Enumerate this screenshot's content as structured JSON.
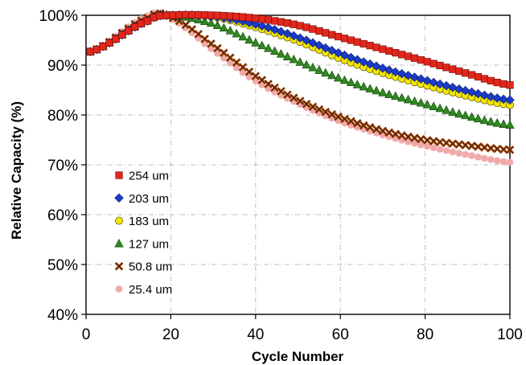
{
  "chart_data": {
    "type": "scatter",
    "title": "",
    "xlabel": "Cycle Number",
    "ylabel": "Relative Capacity (%)",
    "xlim": [
      0,
      100
    ],
    "ylim": [
      40,
      100
    ],
    "x_ticks": [
      0,
      20,
      40,
      60,
      80,
      100
    ],
    "y_ticks": [
      40,
      50,
      60,
      70,
      80,
      90,
      100
    ],
    "y_tick_format": "percent",
    "grid": "dashed",
    "legend_position": "left-lower",
    "x": [
      1,
      15,
      20,
      30,
      40,
      50,
      60,
      70,
      80,
      90,
      100
    ],
    "series": [
      {
        "name": "254 um",
        "marker": "square",
        "color": "#e3261b",
        "values": [
          92.7,
          99.0,
          100.0,
          100.0,
          99.4,
          98.0,
          95.6,
          93.2,
          90.8,
          88.3,
          86.0
        ]
      },
      {
        "name": "203 um",
        "marker": "diamond",
        "color": "#1a3cc8",
        "values": [
          92.7,
          99.0,
          100.0,
          99.8,
          98.2,
          95.6,
          92.3,
          89.4,
          87.0,
          84.8,
          83.0
        ]
      },
      {
        "name": "183 um",
        "marker": "circle",
        "color": "#f2e600",
        "values": [
          92.7,
          99.0,
          100.0,
          99.7,
          97.6,
          94.8,
          91.3,
          88.4,
          86.0,
          83.8,
          82.0
        ]
      },
      {
        "name": "127 um",
        "marker": "triangle",
        "color": "#2f8a1f",
        "values": [
          92.7,
          99.2,
          100.0,
          98.3,
          94.5,
          90.8,
          87.3,
          84.5,
          82.2,
          79.8,
          78.0
        ]
      },
      {
        "name": "50.8 um",
        "marker": "x",
        "color": "#b8561c",
        "values": [
          92.7,
          99.6,
          99.6,
          94.0,
          87.8,
          83.0,
          79.5,
          76.8,
          75.0,
          73.9,
          73.0
        ]
      },
      {
        "name": "25.4 um",
        "marker": "asterisk",
        "color": "#f0a8a8",
        "values": [
          92.7,
          100.0,
          99.3,
          93.0,
          86.8,
          82.3,
          78.7,
          76.0,
          73.8,
          72.0,
          70.5
        ]
      }
    ]
  }
}
